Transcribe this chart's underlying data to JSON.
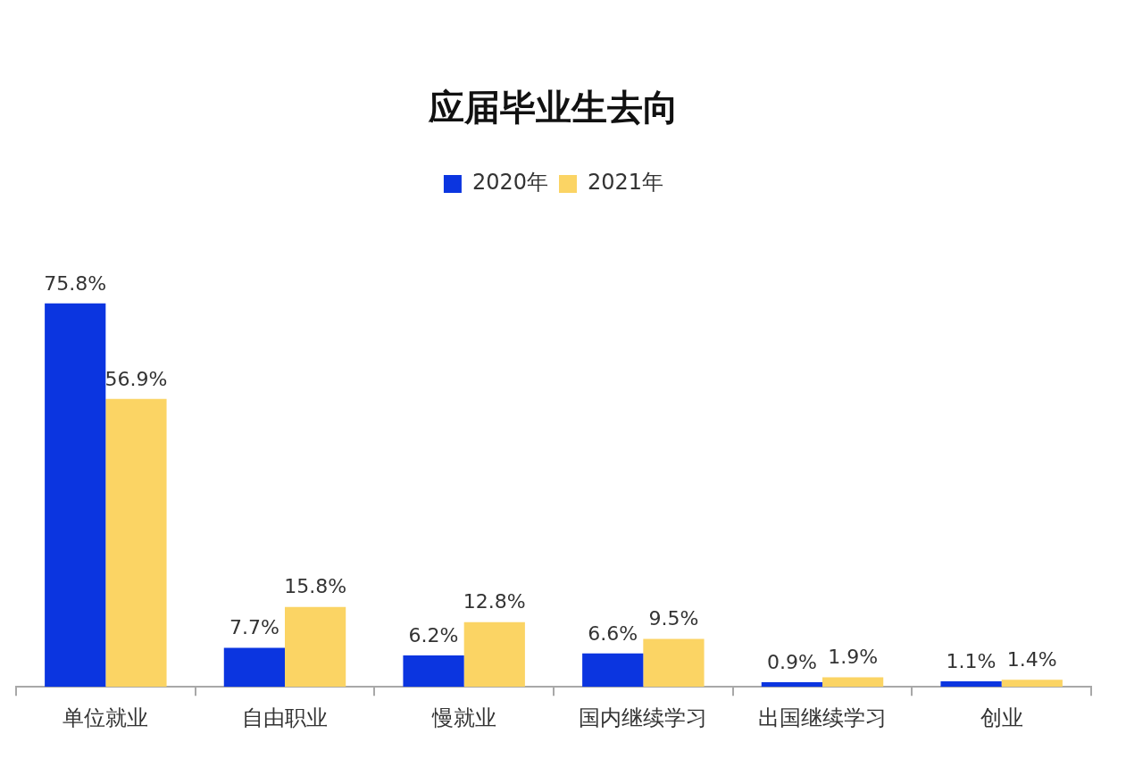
{
  "chart_data": {
    "type": "bar",
    "title": "应届毕业生去向",
    "categories": [
      "单位就业",
      "自由职业",
      "慢就业",
      "国内继续学习",
      "出国继续学习",
      "创业"
    ],
    "series": [
      {
        "name": "2020年",
        "color": "#0b35e0",
        "values": [
          75.8,
          7.7,
          6.2,
          6.6,
          0.9,
          1.1
        ],
        "value_labels": [
          "75.8%",
          "7.7%",
          "6.2%",
          "6.6%",
          "0.9%",
          "1.1%"
        ]
      },
      {
        "name": "2021年",
        "color": "#fbd464",
        "values": [
          56.9,
          15.8,
          12.8,
          9.5,
          1.9,
          1.4
        ],
        "value_labels": [
          "56.9%",
          "15.8%",
          "12.8%",
          "9.5%",
          "1.9%",
          "1.4%"
        ]
      }
    ],
    "legend": "top",
    "grid": false,
    "tick_labels": "x"
  }
}
